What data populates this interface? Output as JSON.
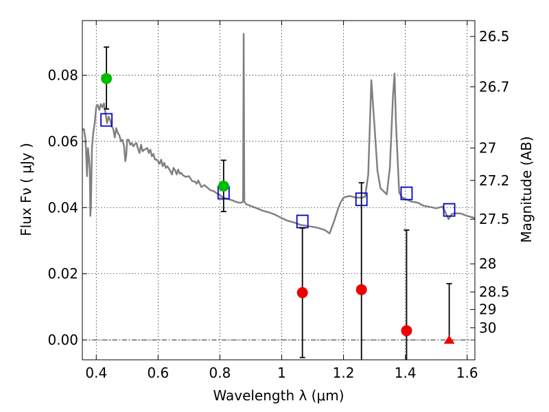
{
  "chart_data": {
    "type": "scatter",
    "xlabel": "Wavelength  λ (μm)",
    "ylabel": "Flux  Fν  ( μJy )",
    "ylabel_right": "Magnitude (AB)",
    "xlim": [
      0.355,
      1.625
    ],
    "ylim": [
      -0.006,
      0.0965
    ],
    "x_ticks": [
      0.4,
      0.6,
      0.8,
      1.0,
      1.2,
      1.4,
      1.6
    ],
    "x_tick_labels": [
      "0.4",
      "0.6",
      "0.8",
      "1",
      "1.2",
      "1.4",
      "1.6"
    ],
    "y_ticks": [
      0.0,
      0.02,
      0.04,
      0.06,
      0.08
    ],
    "y_tick_labels": [
      "0.00",
      "0.02",
      "0.04",
      "0.06",
      "0.08"
    ],
    "right_ticks": [
      {
        "label": "26.5",
        "flux": 0.0917
      },
      {
        "label": "26.7",
        "flux": 0.0765
      },
      {
        "label": "27",
        "flux": 0.058
      },
      {
        "label": "27.2",
        "flux": 0.0482
      },
      {
        "label": "27.5",
        "flux": 0.0365
      },
      {
        "label": "28",
        "flux": 0.023
      },
      {
        "label": "28.5",
        "flux": 0.0145
      },
      {
        "label": "29",
        "flux": 0.0092
      },
      {
        "label": "30",
        "flux": 0.0037
      }
    ],
    "grid": true,
    "series": [
      {
        "name": "model spectrum",
        "kind": "line",
        "color": "#808080",
        "points": [
          [
            0.355,
            0.0635
          ],
          [
            0.36,
            0.0637
          ],
          [
            0.365,
            0.0607
          ],
          [
            0.368,
            0.0545
          ],
          [
            0.37,
            0.0495
          ],
          [
            0.373,
            0.058
          ],
          [
            0.376,
            0.0555
          ],
          [
            0.379,
            0.0515
          ],
          [
            0.381,
            0.0375
          ],
          [
            0.383,
            0.041
          ],
          [
            0.386,
            0.058
          ],
          [
            0.39,
            0.0625
          ],
          [
            0.395,
            0.0655
          ],
          [
            0.4,
            0.0705
          ],
          [
            0.405,
            0.071
          ],
          [
            0.41,
            0.0695
          ],
          [
            0.415,
            0.0713
          ],
          [
            0.42,
            0.0703
          ],
          [
            0.425,
            0.0715
          ],
          [
            0.43,
            0.0685
          ],
          [
            0.435,
            0.0655
          ],
          [
            0.44,
            0.0675
          ],
          [
            0.445,
            0.0665
          ],
          [
            0.45,
            0.0645
          ],
          [
            0.455,
            0.0638
          ],
          [
            0.46,
            0.0612
          ],
          [
            0.465,
            0.064
          ],
          [
            0.47,
            0.0625
          ],
          [
            0.475,
            0.0618
          ],
          [
            0.48,
            0.06
          ],
          [
            0.485,
            0.0605
          ],
          [
            0.49,
            0.0585
          ],
          [
            0.494,
            0.054
          ],
          [
            0.497,
            0.0558
          ],
          [
            0.5,
            0.0605
          ],
          [
            0.505,
            0.0605
          ],
          [
            0.51,
            0.059
          ],
          [
            0.515,
            0.0595
          ],
          [
            0.52,
            0.0585
          ],
          [
            0.525,
            0.0592
          ],
          [
            0.53,
            0.0595
          ],
          [
            0.535,
            0.0578
          ],
          [
            0.54,
            0.0565
          ],
          [
            0.545,
            0.059
          ],
          [
            0.55,
            0.057
          ],
          [
            0.555,
            0.0575
          ],
          [
            0.56,
            0.0577
          ],
          [
            0.565,
            0.058
          ],
          [
            0.57,
            0.0565
          ],
          [
            0.575,
            0.0575
          ],
          [
            0.58,
            0.0555
          ],
          [
            0.585,
            0.0562
          ],
          [
            0.59,
            0.0545
          ],
          [
            0.595,
            0.0545
          ],
          [
            0.6,
            0.054
          ],
          [
            0.605,
            0.0532
          ],
          [
            0.61,
            0.0545
          ],
          [
            0.615,
            0.0525
          ],
          [
            0.62,
            0.0535
          ],
          [
            0.625,
            0.052
          ],
          [
            0.63,
            0.0525
          ],
          [
            0.64,
            0.051
          ],
          [
            0.645,
            0.05
          ],
          [
            0.65,
            0.052
          ],
          [
            0.655,
            0.0513
          ],
          [
            0.66,
            0.05
          ],
          [
            0.665,
            0.0515
          ],
          [
            0.67,
            0.0502
          ],
          [
            0.675,
            0.0505
          ],
          [
            0.68,
            0.0498
          ],
          [
            0.69,
            0.0493
          ],
          [
            0.7,
            0.0495
          ],
          [
            0.71,
            0.048
          ],
          [
            0.72,
            0.0478
          ],
          [
            0.725,
            0.0472
          ],
          [
            0.73,
            0.0482
          ],
          [
            0.74,
            0.0462
          ],
          [
            0.75,
            0.0468
          ],
          [
            0.76,
            0.046
          ],
          [
            0.77,
            0.0452
          ],
          [
            0.78,
            0.045
          ],
          [
            0.79,
            0.0443
          ],
          [
            0.8,
            0.0438
          ],
          [
            0.81,
            0.043
          ],
          [
            0.82,
            0.0428
          ],
          [
            0.83,
            0.0425
          ],
          [
            0.84,
            0.0422
          ],
          [
            0.85,
            0.0418
          ],
          [
            0.86,
            0.0415
          ],
          [
            0.87,
            0.0415
          ],
          [
            0.875,
            0.0418
          ],
          [
            0.877,
            0.0925
          ],
          [
            0.879,
            0.0418
          ],
          [
            0.885,
            0.041
          ],
          [
            0.9,
            0.0405
          ],
          [
            0.92,
            0.0398
          ],
          [
            0.94,
            0.039
          ],
          [
            0.96,
            0.0385
          ],
          [
            0.98,
            0.0378
          ],
          [
            1.0,
            0.0368
          ],
          [
            1.02,
            0.036
          ],
          [
            1.04,
            0.0355
          ],
          [
            1.06,
            0.0348
          ],
          [
            1.08,
            0.0345
          ],
          [
            1.1,
            0.0342
          ],
          [
            1.12,
            0.0338
          ],
          [
            1.14,
            0.0332
          ],
          [
            1.15,
            0.0325
          ],
          [
            1.155,
            0.0322
          ],
          [
            1.16,
            0.0335
          ],
          [
            1.17,
            0.036
          ],
          [
            1.18,
            0.039
          ],
          [
            1.19,
            0.0415
          ],
          [
            1.2,
            0.043
          ],
          [
            1.21,
            0.0433
          ],
          [
            1.22,
            0.0435
          ],
          [
            1.24,
            0.043
          ],
          [
            1.26,
            0.043
          ],
          [
            1.27,
            0.0433
          ],
          [
            1.28,
            0.05
          ],
          [
            1.29,
            0.0785
          ],
          [
            1.3,
            0.065
          ],
          [
            1.31,
            0.051
          ],
          [
            1.32,
            0.0458
          ],
          [
            1.34,
            0.044
          ],
          [
            1.35,
            0.052
          ],
          [
            1.36,
            0.0735
          ],
          [
            1.365,
            0.0805
          ],
          [
            1.37,
            0.065
          ],
          [
            1.38,
            0.0445
          ],
          [
            1.39,
            0.043
          ],
          [
            1.4,
            0.0426
          ],
          [
            1.42,
            0.0418
          ],
          [
            1.44,
            0.0415
          ],
          [
            1.46,
            0.0405
          ],
          [
            1.48,
            0.0402
          ],
          [
            1.5,
            0.0398
          ],
          [
            1.52,
            0.0403
          ],
          [
            1.53,
            0.0385
          ],
          [
            1.54,
            0.0365
          ],
          [
            1.55,
            0.038
          ],
          [
            1.56,
            0.0383
          ],
          [
            1.58,
            0.0382
          ],
          [
            1.6,
            0.0375
          ],
          [
            1.62,
            0.037
          ],
          [
            1.625,
            0.0366
          ]
        ]
      },
      {
        "name": "model photometry",
        "kind": "open-square",
        "color": "#0000cc",
        "points": [
          [
            0.433,
            0.0665
          ],
          [
            0.812,
            0.0445
          ],
          [
            1.067,
            0.0358
          ],
          [
            1.258,
            0.0425
          ],
          [
            1.404,
            0.0443
          ],
          [
            1.542,
            0.0393
          ]
        ]
      },
      {
        "name": "detections",
        "kind": "filled-circle",
        "color": "#00bb00",
        "points": [
          {
            "x": 0.433,
            "y": 0.079,
            "yerr_low": 0.0698,
            "yerr_high": 0.0885
          },
          {
            "x": 0.812,
            "y": 0.0465,
            "yerr_low": 0.0388,
            "yerr_high": 0.0543
          }
        ]
      },
      {
        "name": "non-detections",
        "kind": "filled-circle",
        "color": "#ee0000",
        "points": [
          {
            "x": 1.067,
            "y": 0.0143,
            "yerr_low": -0.0053,
            "yerr_high": 0.0338
          },
          {
            "x": 1.258,
            "y": 0.0152,
            "yerr_low": -0.0095,
            "yerr_high": 0.0475
          },
          {
            "x": 1.404,
            "y": 0.0028,
            "yerr_low": -0.0095,
            "yerr_high": 0.0332
          }
        ]
      },
      {
        "name": "upper limit",
        "kind": "filled-triangle",
        "color": "#ee0000",
        "points": [
          {
            "x": 1.542,
            "y": 0.0,
            "yerr_low": 0.0,
            "yerr_high": 0.017
          }
        ]
      }
    ],
    "zero_line": {
      "y": 0.0,
      "color": "#000000",
      "style": "dash-dot"
    }
  }
}
